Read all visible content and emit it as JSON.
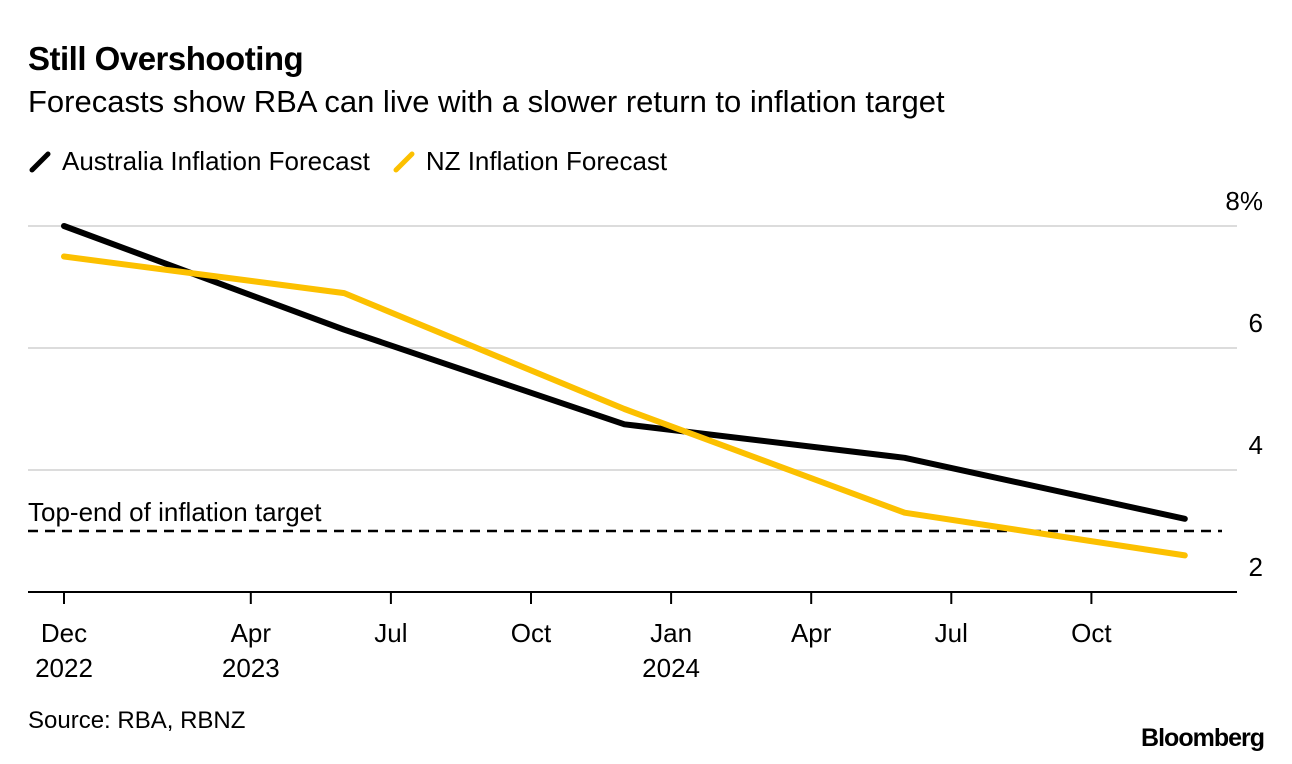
{
  "header": {
    "title": "Still Overshooting",
    "subtitle": "Forecasts show RBA can live with a slower return to inflation target"
  },
  "footer": {
    "source": "Source: RBA, RBNZ",
    "brand": "Bloomberg"
  },
  "chart_data": {
    "type": "line",
    "title": "Still Overshooting",
    "subtitle": "Forecasts show RBA can live with a slower return to inflation target",
    "xlabel": "",
    "ylabel": "",
    "x": [
      "2022-12",
      "2023-06",
      "2023-12",
      "2024-06",
      "2024-12"
    ],
    "series": [
      {
        "name": "Australia Inflation Forecast",
        "color": "#000000",
        "values": [
          8.0,
          6.3,
          4.75,
          4.2,
          3.2
        ]
      },
      {
        "name": "NZ Inflation Forecast",
        "color": "#fcc000",
        "values": [
          7.5,
          6.9,
          5.0,
          3.3,
          2.6
        ]
      }
    ],
    "ylim": [
      2,
      8
    ],
    "y_ticks": [
      {
        "value": 8,
        "label": "8%"
      },
      {
        "value": 6,
        "label": "6"
      },
      {
        "value": 4,
        "label": "4"
      },
      {
        "value": 2,
        "label": "2"
      }
    ],
    "x_ticks": [
      {
        "date": "2022-12",
        "label": "Dec",
        "year": "2022"
      },
      {
        "date": "2023-04",
        "label": "Apr",
        "year": "2023"
      },
      {
        "date": "2023-07",
        "label": "Jul",
        "year": ""
      },
      {
        "date": "2023-10",
        "label": "Oct",
        "year": ""
      },
      {
        "date": "2024-01",
        "label": "Jan",
        "year": "2024"
      },
      {
        "date": "2024-04",
        "label": "Apr",
        "year": ""
      },
      {
        "date": "2024-07",
        "label": "Jul",
        "year": ""
      },
      {
        "date": "2024-10",
        "label": "Oct",
        "year": ""
      }
    ],
    "reference_line": {
      "value": 3.0,
      "label": "Top-end of inflation target",
      "style": "dashed"
    },
    "grid": true,
    "y_axis_position": "right",
    "legend_position": "top-left"
  }
}
